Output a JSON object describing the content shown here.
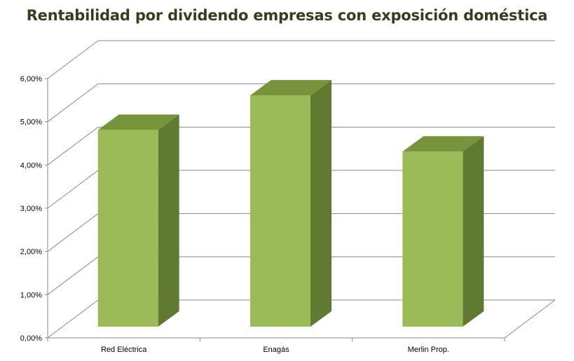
{
  "chart_data": {
    "type": "bar",
    "title": "Rentabilidad por dividendo empresas con exposición doméstica",
    "categories": [
      "Red Eléctrica",
      "Enagás",
      "Merlin Prop."
    ],
    "values": [
      4.55,
      5.35,
      4.05
    ],
    "ylim": [
      0,
      6
    ],
    "yticks": [
      0,
      1,
      2,
      3,
      4,
      5,
      6
    ],
    "ytick_labels": [
      "0,00%",
      "1,00%",
      "2,00%",
      "3,00%",
      "4,00%",
      "5,00%",
      "6,00%"
    ],
    "grid": true,
    "legend": "none",
    "style": "3d-column"
  },
  "colors": {
    "bar_front": "#9bbb59",
    "bar_top": "#77933c",
    "bar_side": "#617a32",
    "grid": "#888888",
    "title": "#3b3b1f"
  }
}
